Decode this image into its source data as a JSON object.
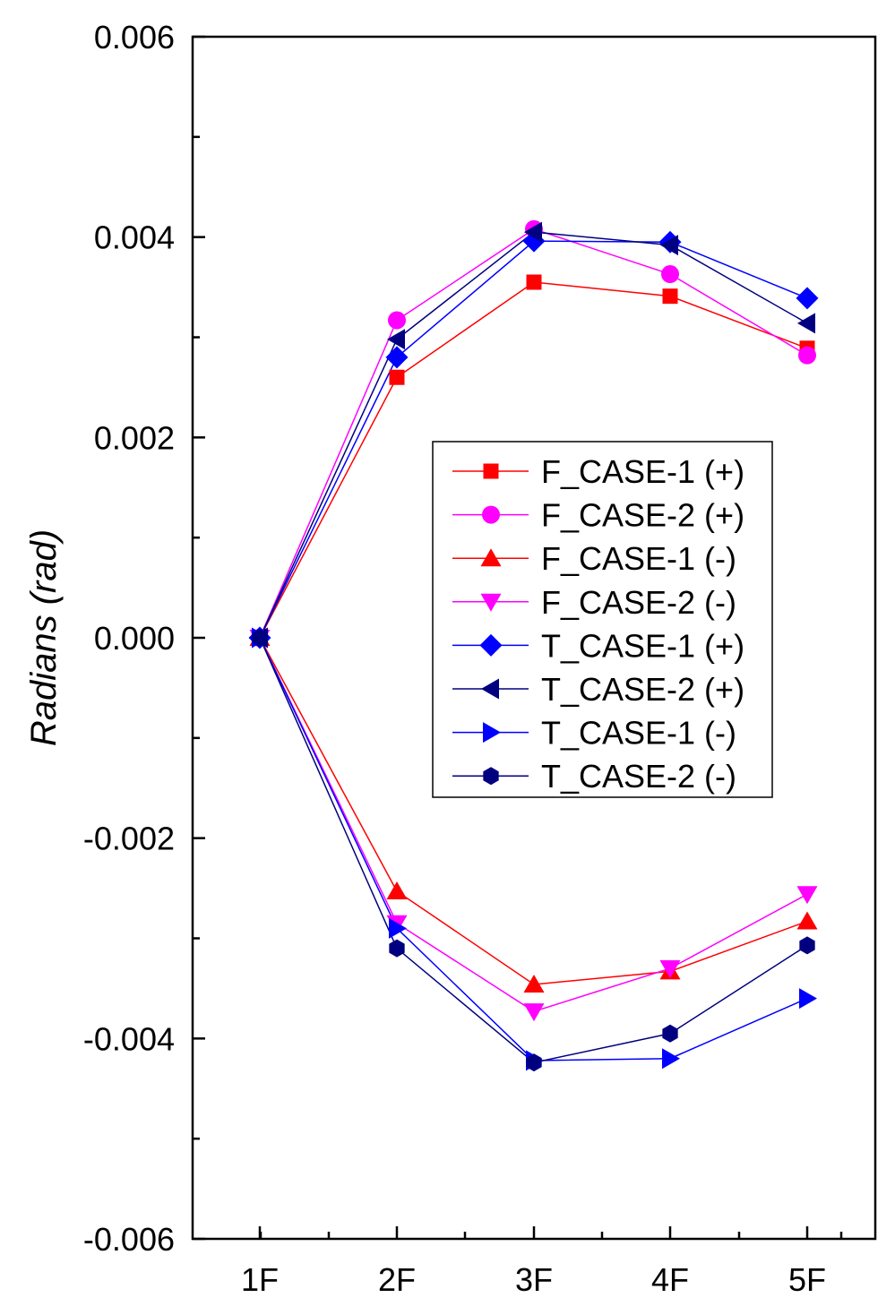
{
  "chart_data": {
    "type": "line",
    "title": "",
    "xlabel": "",
    "ylabel": "Radians (rad)",
    "categories": [
      "1F",
      "2F",
      "3F",
      "4F",
      "5F"
    ],
    "ylim": [
      -0.006,
      0.006
    ],
    "yticks": [
      "-0.006",
      "-0.004",
      "-0.002",
      "0.000",
      "0.002",
      "0.004",
      "0.006"
    ],
    "ytick_values": [
      -0.006,
      -0.004,
      -0.002,
      0,
      0.002,
      0.004,
      0.006
    ],
    "grid": false,
    "legend_placement": "center-right",
    "series": [
      {
        "name": "F_CASE-1 (+)",
        "color": "#ff0000",
        "marker": "square",
        "values": [
          0,
          0.0026,
          0.00355,
          0.00341,
          0.00289
        ]
      },
      {
        "name": "F_CASE-2 (+)",
        "color": "#ff00ff",
        "marker": "circle",
        "values": [
          0,
          0.00317,
          0.00408,
          0.00363,
          0.00282
        ]
      },
      {
        "name": "F_CASE-1 (-)",
        "color": "#ff0000",
        "marker": "triangle-up",
        "values": [
          0,
          -0.00253,
          -0.00346,
          -0.00333,
          -0.00283
        ]
      },
      {
        "name": "F_CASE-2 (-)",
        "color": "#ff00ff",
        "marker": "triangle-down",
        "values": [
          0,
          -0.00285,
          -0.00373,
          -0.0033,
          -0.00256
        ]
      },
      {
        "name": "T_CASE-1 (+)",
        "color": "#0000ff",
        "marker": "diamond",
        "values": [
          0,
          0.0028,
          0.00396,
          0.00395,
          0.00339
        ]
      },
      {
        "name": "T_CASE-2 (+)",
        "color": "#000080",
        "marker": "triangle-left",
        "values": [
          0,
          0.00298,
          0.00405,
          0.00392,
          0.00314
        ]
      },
      {
        "name": "T_CASE-1 (-)",
        "color": "#0000ff",
        "marker": "triangle-right",
        "values": [
          0,
          -0.0029,
          -0.00422,
          -0.0042,
          -0.0036
        ]
      },
      {
        "name": "T_CASE-2 (-)",
        "color": "#000080",
        "marker": "hexagon",
        "values": [
          0,
          -0.0031,
          -0.00424,
          -0.00395,
          -0.00307
        ]
      }
    ]
  }
}
